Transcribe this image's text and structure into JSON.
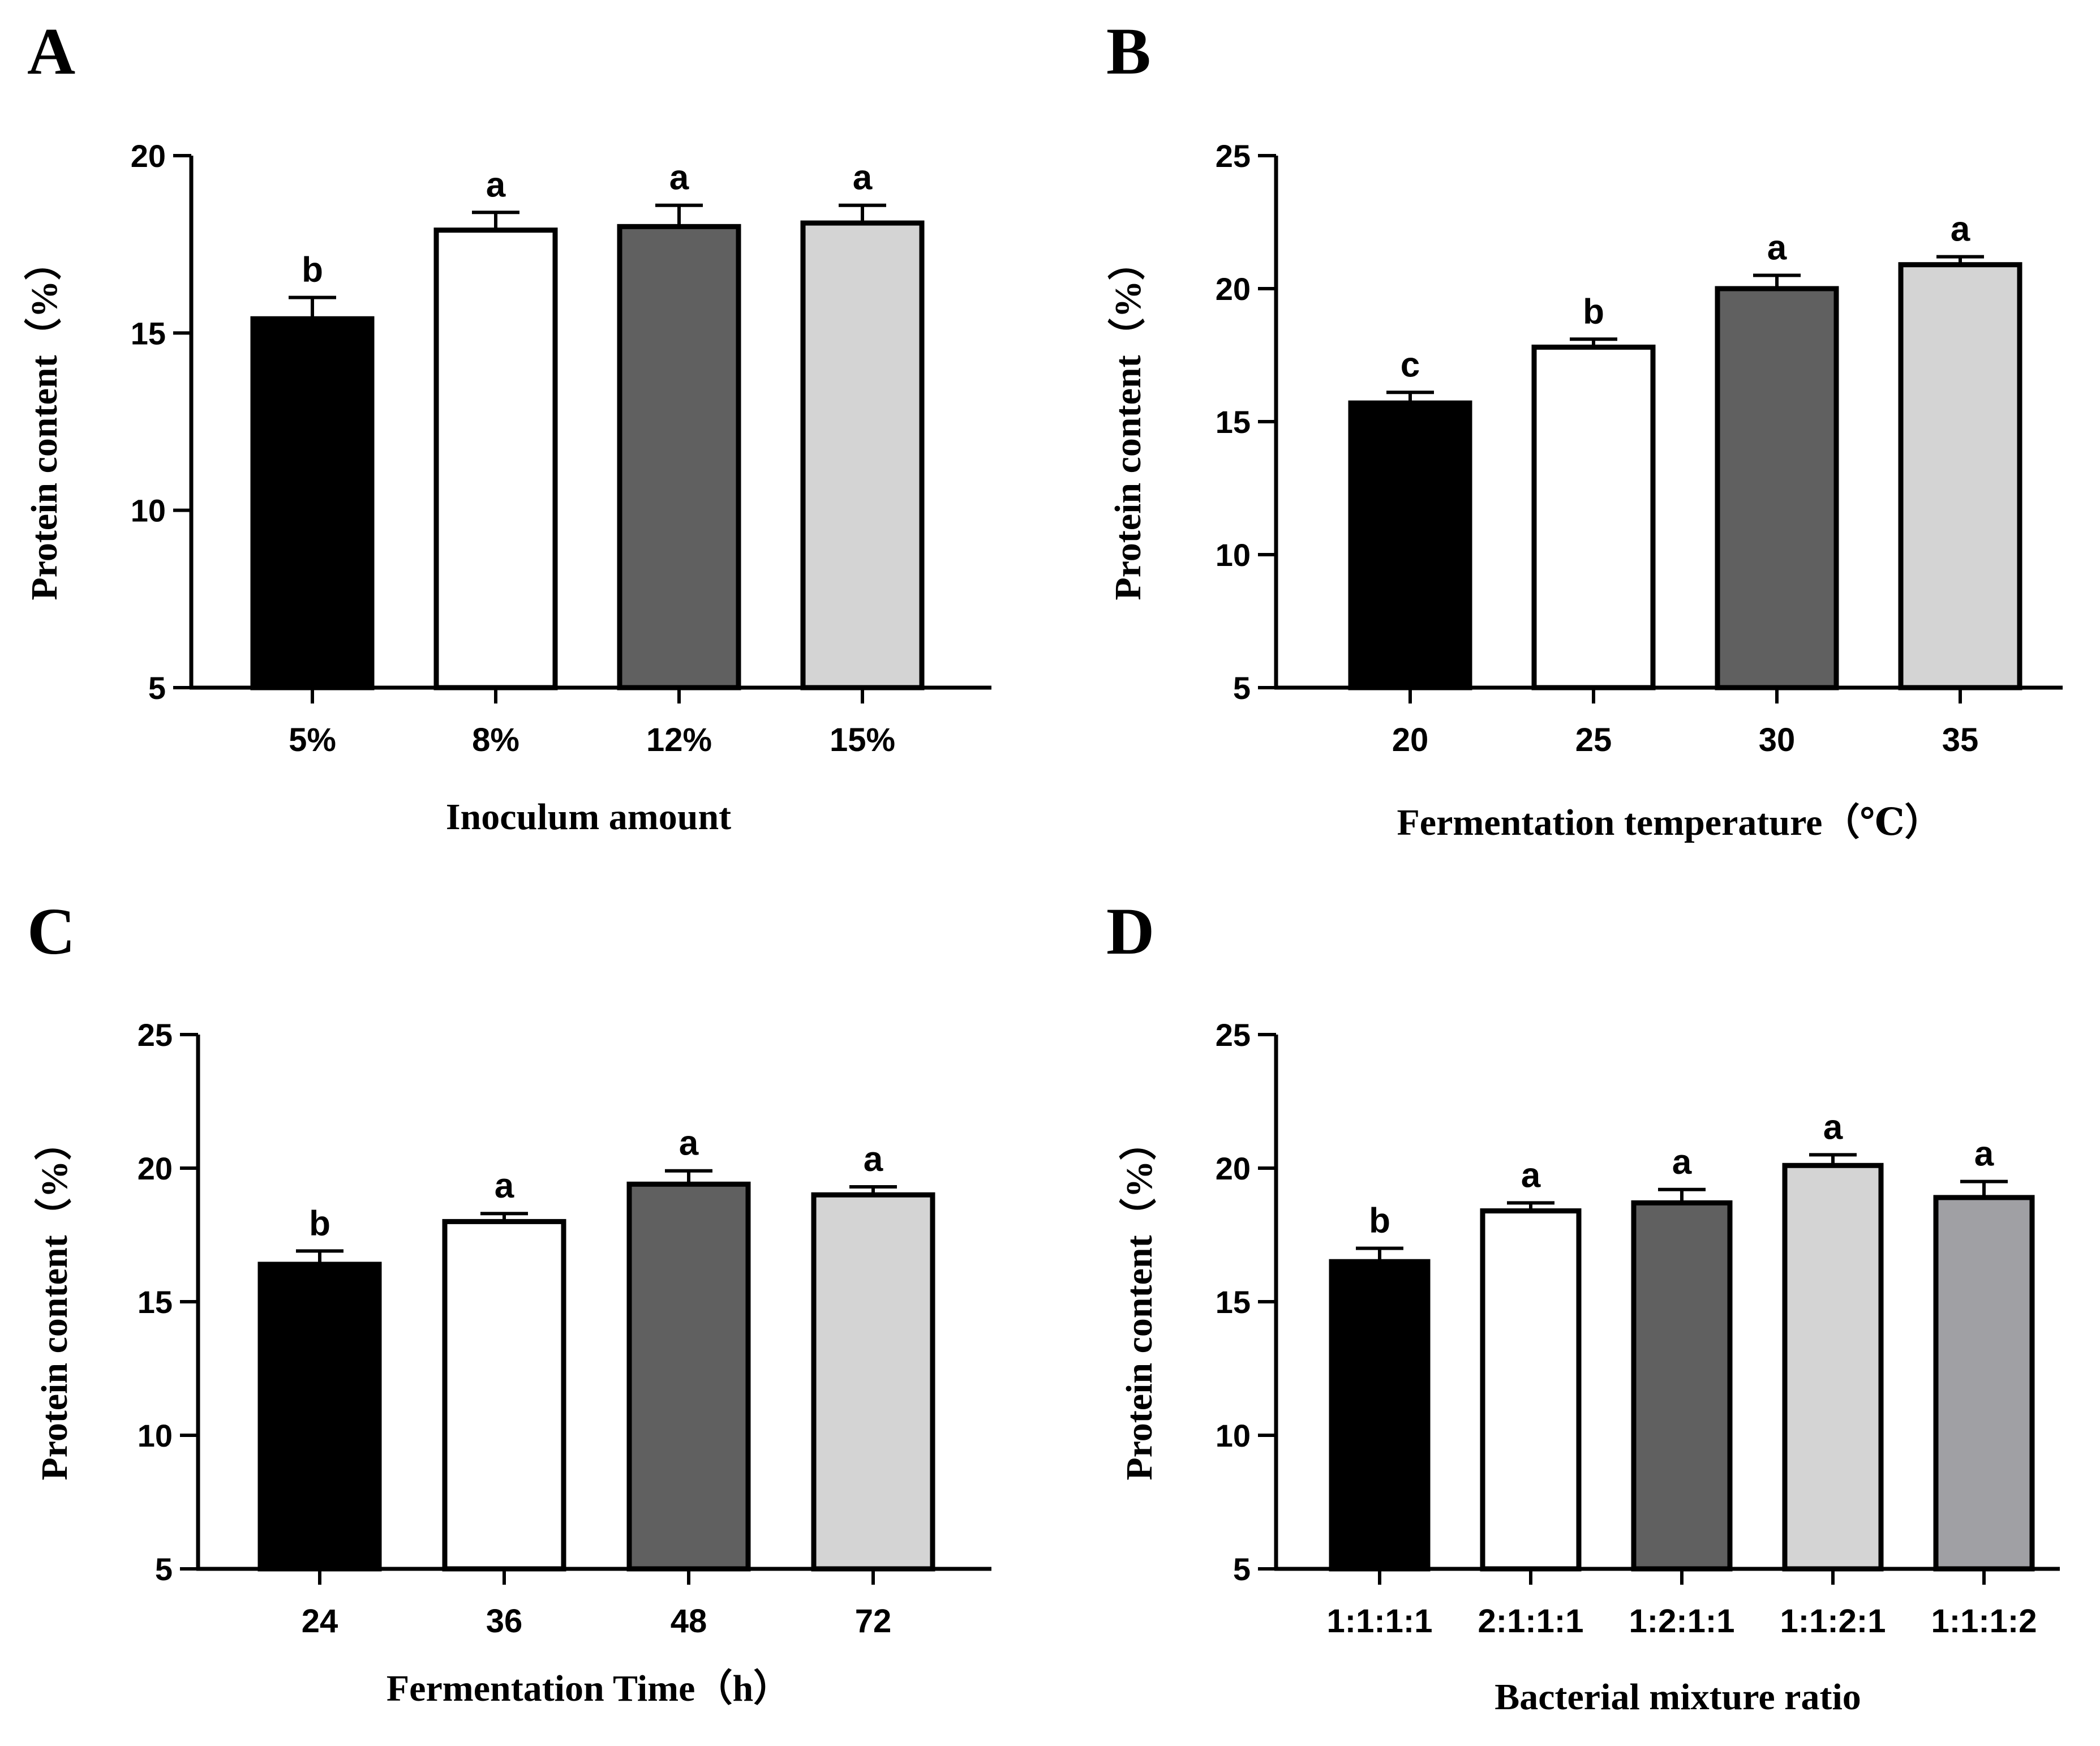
{
  "chart_data": [
    {
      "panel": "A",
      "type": "bar",
      "categories": [
        "5%",
        "8%",
        "12%",
        "15%"
      ],
      "values": [
        15.4,
        17.9,
        18.0,
        18.1
      ],
      "errors": [
        0.6,
        0.5,
        0.6,
        0.5
      ],
      "significance": [
        "b",
        "a",
        "a",
        "a"
      ],
      "fills": [
        "#000000",
        "#ffffff",
        "#606060",
        "#d4d4d4"
      ],
      "xlabel": "Inoculum amount",
      "ylabel": "Protein content（%）",
      "ylim": [
        5,
        20
      ],
      "yticks": [
        5,
        10,
        15,
        20
      ]
    },
    {
      "panel": "B",
      "type": "bar",
      "categories": [
        "20",
        "25",
        "30",
        "35"
      ],
      "values": [
        15.7,
        17.8,
        20.0,
        20.9
      ],
      "errors": [
        0.4,
        0.3,
        0.5,
        0.3
      ],
      "significance": [
        "c",
        "b",
        "a",
        "a"
      ],
      "fills": [
        "#000000",
        "#ffffff",
        "#606060",
        "#d4d4d4"
      ],
      "xlabel": "Fermentation temperature（℃）",
      "ylabel": "Protein content（%）",
      "ylim": [
        5,
        25
      ],
      "yticks": [
        5,
        10,
        15,
        20,
        25
      ]
    },
    {
      "panel": "C",
      "type": "bar",
      "categories": [
        "24",
        "36",
        "48",
        "72"
      ],
      "values": [
        16.4,
        18.0,
        19.4,
        19.0
      ],
      "errors": [
        0.5,
        0.3,
        0.5,
        0.3
      ],
      "significance": [
        "b",
        "a",
        "a",
        "a"
      ],
      "fills": [
        "#000000",
        "#ffffff",
        "#606060",
        "#d4d4d4"
      ],
      "xlabel": "Fermentation Time（h）",
      "ylabel": "Protein content（%）",
      "ylim": [
        5,
        25
      ],
      "yticks": [
        5,
        10,
        15,
        20,
        25
      ]
    },
    {
      "panel": "D",
      "type": "bar",
      "categories": [
        "1:1:1:1",
        "2:1:1:1",
        "1:2:1:1",
        "1:1:2:1",
        "1:1:1:2"
      ],
      "values": [
        16.5,
        18.4,
        18.7,
        20.1,
        18.9
      ],
      "errors": [
        0.5,
        0.3,
        0.5,
        0.4,
        0.6
      ],
      "significance": [
        "b",
        "a",
        "a",
        "a",
        "a"
      ],
      "fills": [
        "#000000",
        "#ffffff",
        "#606060",
        "#d4d4d4",
        "#a0a0a4"
      ],
      "xlabel": "Bacterial mixture ratio",
      "ylabel": "Protein content（%）",
      "ylim": [
        5,
        25
      ],
      "yticks": [
        5,
        10,
        15,
        20,
        25
      ]
    }
  ]
}
